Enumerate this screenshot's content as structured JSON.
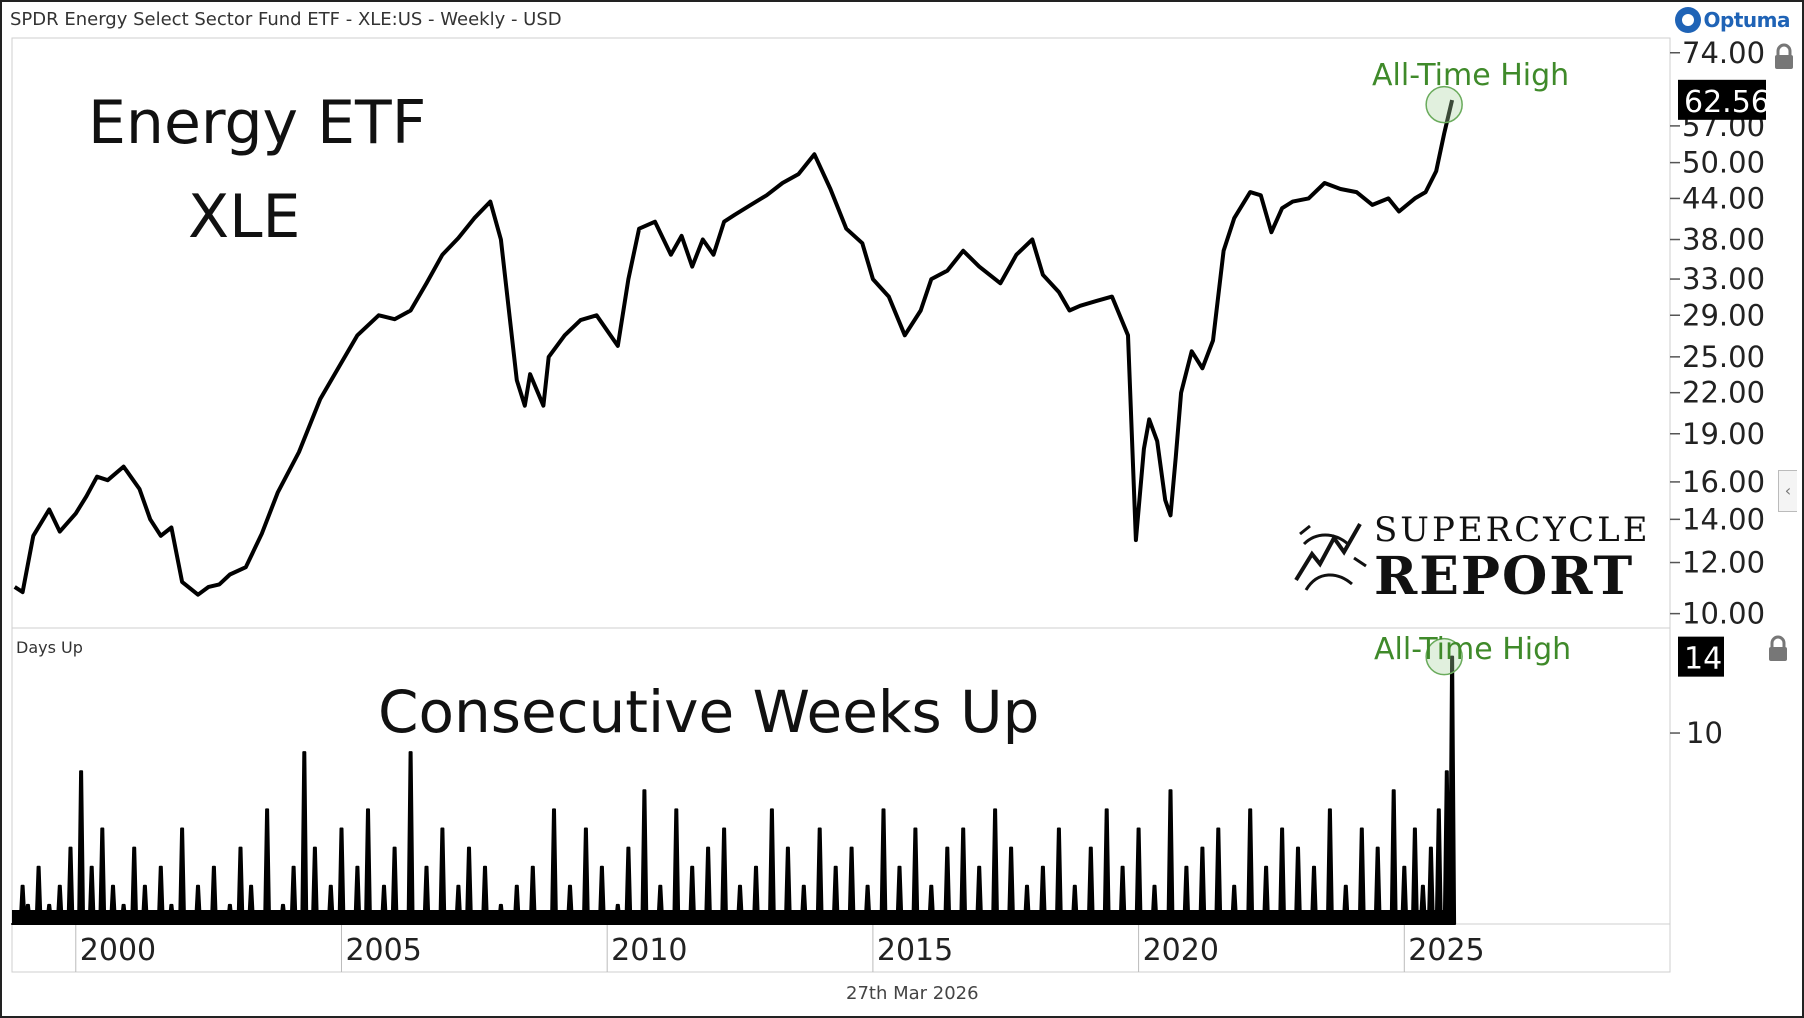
{
  "header": {
    "title": "SPDR Energy Select Sector Fund ETF - XLE:US - Weekly - USD",
    "logo_text": "Optuma"
  },
  "footer": {
    "date": "27th Mar 2026"
  },
  "branding": {
    "line1": "SUPERCYCLE",
    "line2": "REPORT"
  },
  "colors": {
    "line": "#000000",
    "annotation": "#3f8a2a",
    "highlight_circle": "#a9d4a0",
    "label_bg": "#000000"
  },
  "chart_data": [
    {
      "type": "line",
      "title_lines": [
        "Energy ETF",
        "XLE"
      ],
      "scale": "log",
      "ylim": [
        9.5,
        78
      ],
      "xlim": [
        1998.8,
        2030.0
      ],
      "y_ticks": [
        10,
        12,
        14,
        16,
        19,
        22,
        25,
        29,
        33,
        38,
        44,
        50,
        57,
        74
      ],
      "y_tick_labels": [
        "10.00",
        "12.00",
        "14.00",
        "16.00",
        "19.00",
        "22.00",
        "25.00",
        "29.00",
        "33.00",
        "38.00",
        "44.00",
        "50.00",
        "57.00",
        "74.00"
      ],
      "current_value": 62.56,
      "current_value_label": "62.56",
      "annotation": {
        "text": "All-Time High",
        "x": 2025.75,
        "y": 61.5
      },
      "series": [
        {
          "x": [
            1998.85,
            1999.0,
            1999.2,
            1999.5,
            1999.7,
            2000.0,
            2000.2,
            2000.4,
            2000.6,
            2000.9,
            2001.2,
            2001.4,
            2001.6,
            2001.8,
            2002.0,
            2002.3,
            2002.5,
            2002.7,
            2002.9,
            2003.2,
            2003.5,
            2003.8,
            2004.2,
            2004.6,
            2005.0,
            2005.3,
            2005.7,
            2006.0,
            2006.3,
            2006.6,
            2006.9,
            2007.2,
            2007.5,
            2007.8,
            2008.0,
            2008.3,
            2008.45,
            2008.55,
            2008.8,
            2008.9,
            2009.2,
            2009.5,
            2009.8,
            2010.2,
            2010.4,
            2010.6,
            2010.9,
            2011.2,
            2011.4,
            2011.6,
            2011.8,
            2012.0,
            2012.2,
            2012.4,
            2012.7,
            2013.0,
            2013.3,
            2013.6,
            2013.9,
            2014.2,
            2014.5,
            2014.8,
            2015.0,
            2015.3,
            2015.6,
            2015.9,
            2016.1,
            2016.4,
            2016.7,
            2017.0,
            2017.4,
            2017.7,
            2018.0,
            2018.2,
            2018.5,
            2018.7,
            2018.9,
            2019.2,
            2019.5,
            2019.8,
            2019.95,
            2020.1,
            2020.2,
            2020.35,
            2020.5,
            2020.6,
            2020.7,
            2020.8,
            2021.0,
            2021.2,
            2021.4,
            2021.6,
            2021.8,
            2022.1,
            2022.3,
            2022.5,
            2022.7,
            2022.9,
            2023.2,
            2023.5,
            2023.8,
            2024.1,
            2024.4,
            2024.7,
            2024.9,
            2025.2,
            2025.4,
            2025.6,
            2025.75,
            2025.9
          ],
          "y": [
            11.0,
            10.8,
            13.2,
            14.5,
            13.4,
            14.3,
            15.2,
            16.3,
            16.1,
            16.9,
            15.6,
            14.0,
            13.2,
            13.6,
            11.2,
            10.7,
            11.0,
            11.1,
            11.5,
            11.8,
            13.3,
            15.4,
            17.8,
            21.5,
            24.5,
            27.0,
            29.0,
            28.6,
            29.5,
            32.5,
            36.0,
            38.2,
            41.0,
            43.5,
            38.0,
            23.0,
            21.0,
            23.5,
            21.0,
            25.0,
            27.0,
            28.5,
            29.0,
            26.0,
            33.0,
            39.5,
            40.5,
            36.0,
            38.5,
            34.5,
            38.0,
            36.0,
            40.5,
            41.5,
            43.0,
            44.5,
            46.5,
            48.0,
            51.5,
            45.5,
            39.5,
            37.5,
            33.0,
            31.0,
            27.0,
            29.5,
            33.0,
            34.0,
            36.5,
            34.5,
            32.5,
            36.0,
            38.0,
            33.5,
            31.5,
            29.5,
            30.0,
            30.5,
            31.0,
            27.0,
            13.0,
            18.0,
            20.0,
            18.5,
            15.0,
            14.2,
            17.5,
            22.0,
            25.5,
            24.0,
            26.5,
            36.5,
            41.0,
            45.0,
            44.5,
            39.0,
            42.5,
            43.5,
            44.0,
            46.5,
            45.5,
            45.0,
            43.0,
            44.0,
            42.0,
            44.0,
            45.0,
            48.5,
            55.5,
            62.5
          ]
        }
      ]
    },
    {
      "type": "bar",
      "title": "Consecutive Weeks Up",
      "indicator_label": "Days Up",
      "ylim": [
        0,
        15.5
      ],
      "xlim": [
        1998.8,
        2030.0
      ],
      "y_ticks": [
        10
      ],
      "y_tick_labels": [
        "10"
      ],
      "x_ticks": [
        2000,
        2005,
        2010,
        2015,
        2020,
        2025
      ],
      "x_tick_labels": [
        "2000",
        "2005",
        "2010",
        "2015",
        "2020",
        "2025"
      ],
      "current_value": 14,
      "current_value_label": "14",
      "annotation": {
        "text": "All-Time High",
        "x": 2025.75,
        "y": 14
      },
      "series": [
        {
          "x": [
            1999.0,
            1999.1,
            1999.3,
            1999.5,
            1999.7,
            1999.9,
            2000.1,
            2000.3,
            2000.5,
            2000.7,
            2000.9,
            2001.1,
            2001.3,
            2001.6,
            2001.8,
            2002.0,
            2002.3,
            2002.6,
            2002.9,
            2003.1,
            2003.3,
            2003.6,
            2003.9,
            2004.1,
            2004.3,
            2004.5,
            2004.8,
            2005.0,
            2005.3,
            2005.5,
            2005.8,
            2006.0,
            2006.3,
            2006.6,
            2006.9,
            2007.2,
            2007.4,
            2007.7,
            2008.0,
            2008.3,
            2008.6,
            2009.0,
            2009.3,
            2009.6,
            2009.9,
            2010.2,
            2010.4,
            2010.7,
            2011.0,
            2011.3,
            2011.6,
            2011.9,
            2012.2,
            2012.5,
            2012.8,
            2013.1,
            2013.4,
            2013.7,
            2014.0,
            2014.3,
            2014.6,
            2014.9,
            2015.2,
            2015.5,
            2015.8,
            2016.1,
            2016.4,
            2016.7,
            2017.0,
            2017.3,
            2017.6,
            2017.9,
            2018.2,
            2018.5,
            2018.8,
            2019.1,
            2019.4,
            2019.7,
            2020.0,
            2020.3,
            2020.6,
            2020.9,
            2021.2,
            2021.5,
            2021.8,
            2022.1,
            2022.4,
            2022.7,
            2023.0,
            2023.3,
            2023.6,
            2023.9,
            2024.2,
            2024.5,
            2024.8,
            2025.0,
            2025.2,
            2025.35,
            2025.5,
            2025.65,
            2025.8,
            2025.9
          ],
          "y": [
            2,
            1,
            3,
            1,
            2,
            4,
            8,
            3,
            5,
            2,
            1,
            4,
            2,
            3,
            1,
            5,
            2,
            3,
            1,
            4,
            2,
            6,
            1,
            3,
            9,
            4,
            2,
            5,
            3,
            6,
            2,
            4,
            9,
            3,
            5,
            2,
            4,
            3,
            1,
            2,
            3,
            6,
            2,
            5,
            3,
            1,
            4,
            7,
            2,
            6,
            3,
            4,
            5,
            2,
            3,
            6,
            4,
            2,
            5,
            3,
            4,
            2,
            6,
            3,
            5,
            2,
            4,
            5,
            3,
            6,
            4,
            2,
            3,
            5,
            2,
            4,
            6,
            3,
            5,
            2,
            7,
            3,
            4,
            5,
            2,
            6,
            3,
            5,
            4,
            3,
            6,
            2,
            5,
            4,
            7,
            3,
            5,
            2,
            4,
            6,
            8,
            14
          ]
        }
      ]
    }
  ]
}
